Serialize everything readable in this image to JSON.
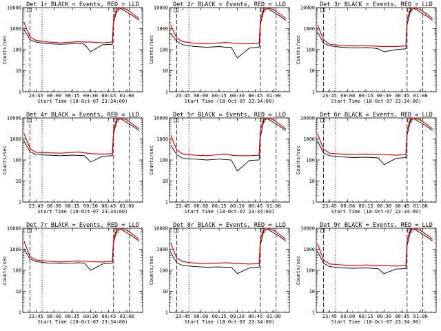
{
  "figure": {
    "colors": {
      "events": "#000000",
      "lld": "#e00000",
      "axes": "#000000",
      "background": "#ffffff"
    },
    "y_tick_labels": [
      "1",
      "10",
      "100",
      "1000",
      "10000"
    ],
    "x_tick_labels": [
      "23:45",
      "00:00",
      "00:15",
      "00:30",
      "00:45",
      "01:00"
    ],
    "y_label": "Counts/sec",
    "x_label": "Start Time (18-Oct-07 23:34:00)"
  },
  "chart_data": [
    {
      "type": "line",
      "title": "Det 1r BLACK = Events, RED = LLD",
      "ylabel": "Counts/sec",
      "xlabel": "Start Time (18-Oct-07 23:34:00)",
      "yscale": "log",
      "ylim": [
        1,
        10000
      ],
      "xlim": [
        "23:34",
        "01:13"
      ],
      "x": [
        "23:35",
        "23:40",
        "23:45",
        "23:55",
        "00:05",
        "00:15",
        "00:20",
        "00:25",
        "00:30",
        "00:40",
        "00:48",
        "00:49",
        "00:52",
        "00:55",
        "01:00",
        "01:05",
        "01:10"
      ],
      "series": [
        {
          "name": "Events",
          "color": "#000000",
          "values": [
            900,
            300,
            230,
            190,
            180,
            190,
            200,
            180,
            80,
            170,
            180,
            2000,
            8000,
            9000,
            6000,
            4000,
            2500
          ]
        },
        {
          "name": "LLD",
          "color": "#e00000",
          "values": [
            2000,
            400,
            280,
            230,
            210,
            230,
            240,
            230,
            230,
            210,
            230,
            3000,
            10000,
            10000,
            8000,
            5000,
            3000
          ]
        }
      ],
      "markers": {
        "dashed": [
          "23:40",
          "00:49",
          "01:02"
        ],
        "dotted": [
          "23:50"
        ]
      }
    },
    {
      "type": "line",
      "title": "Det 2r BLACK = Events, RED = LLD",
      "ylabel": "Counts/sec",
      "xlabel": "Start Time (18-Oct-07 23:34:00)",
      "yscale": "log",
      "ylim": [
        1,
        10000
      ],
      "xlim": [
        "23:34",
        "01:13"
      ],
      "x": [
        "23:35",
        "23:40",
        "23:45",
        "23:55",
        "00:05",
        "00:15",
        "00:20",
        "00:25",
        "00:30",
        "00:40",
        "00:48",
        "00:49",
        "00:52",
        "00:55",
        "01:00",
        "01:05",
        "01:10"
      ],
      "series": [
        {
          "name": "Events",
          "color": "#000000",
          "values": [
            600,
            250,
            170,
            140,
            130,
            140,
            130,
            130,
            40,
            120,
            130,
            1500,
            8000,
            9000,
            6000,
            4000,
            2500
          ]
        },
        {
          "name": "LLD",
          "color": "#e00000",
          "values": [
            1500,
            350,
            240,
            200,
            190,
            210,
            220,
            210,
            200,
            190,
            200,
            2500,
            10000,
            10000,
            8000,
            5000,
            3000
          ]
        }
      ],
      "markers": {
        "dashed": [
          "23:40",
          "00:49",
          "01:02"
        ],
        "dotted": [
          "23:50"
        ]
      }
    },
    {
      "type": "line",
      "title": "Det 3r BLACK = Events, RED = LLD",
      "ylabel": "Counts/sec",
      "xlabel": "Start Time (18-Oct-07 23:34:00)",
      "yscale": "log",
      "ylim": [
        1,
        10000
      ],
      "xlim": [
        "23:34",
        "01:13"
      ],
      "x": [
        "23:35",
        "23:40",
        "23:45",
        "23:55",
        "00:05",
        "00:15",
        "00:20",
        "00:25",
        "00:30",
        "00:40",
        "00:48",
        "00:49",
        "00:52",
        "00:55",
        "01:00",
        "01:05",
        "01:10"
      ],
      "series": [
        {
          "name": "Events",
          "color": "#000000",
          "values": [
            700,
            200,
            150,
            130,
            120,
            125,
            120,
            110,
            80,
            100,
            110,
            1500,
            8000,
            9000,
            6000,
            4000,
            2500
          ]
        },
        {
          "name": "LLD",
          "color": "#e00000",
          "values": [
            1500,
            300,
            180,
            160,
            150,
            160,
            150,
            145,
            140,
            140,
            150,
            2500,
            10000,
            10000,
            8000,
            5000,
            3000
          ]
        }
      ],
      "markers": {
        "dashed": [
          "23:40",
          "00:49",
          "01:02"
        ],
        "dotted": [
          "23:50"
        ]
      }
    },
    {
      "type": "line",
      "title": "Det 4r BLACK = Events, RED = LLD",
      "ylabel": "Counts/sec",
      "xlabel": "Start Time (18-Oct-07 23:34:00)",
      "yscale": "log",
      "ylim": [
        1,
        10000
      ],
      "xlim": [
        "23:34",
        "01:13"
      ],
      "x": [
        "23:35",
        "23:40",
        "23:45",
        "23:55",
        "00:05",
        "00:15",
        "00:20",
        "00:25",
        "00:30",
        "00:40",
        "00:48",
        "00:49",
        "00:52",
        "00:55",
        "01:00",
        "01:05",
        "01:10"
      ],
      "series": [
        {
          "name": "Events",
          "color": "#000000",
          "values": [
            800,
            250,
            180,
            170,
            160,
            170,
            165,
            160,
            80,
            150,
            160,
            1800,
            8000,
            9000,
            6000,
            4000,
            2500
          ]
        },
        {
          "name": "LLD",
          "color": "#e00000",
          "values": [
            1800,
            350,
            230,
            220,
            210,
            230,
            240,
            220,
            200,
            190,
            200,
            2800,
            10000,
            10000,
            8000,
            5000,
            3000
          ]
        }
      ],
      "markers": {
        "dashed": [
          "23:40",
          "00:49",
          "01:02"
        ],
        "dotted": [
          "23:50"
        ]
      }
    },
    {
      "type": "line",
      "title": "Det 5r BLACK = Events, RED = LLD",
      "ylabel": "Counts/sec",
      "xlabel": "Start Time (18-Oct-07 23:34:00)",
      "yscale": "log",
      "ylim": [
        1,
        10000
      ],
      "xlim": [
        "23:34",
        "01:13"
      ],
      "x": [
        "23:35",
        "23:40",
        "23:45",
        "23:55",
        "00:05",
        "00:15",
        "00:20",
        "00:25",
        "00:30",
        "00:40",
        "00:48",
        "00:49",
        "00:52",
        "00:55",
        "01:00",
        "01:05",
        "01:10"
      ],
      "series": [
        {
          "name": "Events",
          "color": "#000000",
          "values": [
            500,
            180,
            120,
            110,
            100,
            110,
            105,
            100,
            30,
            95,
            100,
            1200,
            8000,
            9000,
            6000,
            4000,
            2500
          ]
        },
        {
          "name": "LLD",
          "color": "#e00000",
          "values": [
            1500,
            300,
            190,
            170,
            160,
            180,
            190,
            170,
            160,
            160,
            170,
            2500,
            10000,
            10000,
            8000,
            5000,
            3000
          ]
        }
      ],
      "markers": {
        "dashed": [
          "23:40",
          "00:49",
          "01:02"
        ],
        "dotted": [
          "23:50"
        ]
      }
    },
    {
      "type": "line",
      "title": "Det 6r BLACK = Events, RED = LLD",
      "ylabel": "Counts/sec",
      "xlabel": "Start Time (18-Oct-07 23:34:00)",
      "yscale": "log",
      "ylim": [
        1,
        10000
      ],
      "xlim": [
        "23:34",
        "01:13"
      ],
      "x": [
        "23:35",
        "23:40",
        "23:45",
        "23:55",
        "00:05",
        "00:15",
        "00:20",
        "00:25",
        "00:30",
        "00:40",
        "00:48",
        "00:49",
        "00:52",
        "00:55",
        "01:00",
        "01:05",
        "01:10"
      ],
      "series": [
        {
          "name": "Events",
          "color": "#000000",
          "values": [
            800,
            220,
            160,
            140,
            130,
            135,
            130,
            125,
            60,
            120,
            130,
            1500,
            8000,
            9000,
            6000,
            4000,
            2500
          ]
        },
        {
          "name": "LLD",
          "color": "#e00000",
          "values": [
            1800,
            330,
            210,
            190,
            180,
            190,
            185,
            180,
            180,
            170,
            180,
            2500,
            10000,
            10000,
            8000,
            5000,
            3000
          ]
        }
      ],
      "markers": {
        "dashed": [
          "23:40",
          "00:49",
          "01:02"
        ],
        "dotted": [
          "23:50"
        ]
      }
    },
    {
      "type": "line",
      "title": "Det 7r BLACK = Events, RED = LLD",
      "ylabel": "Counts/sec",
      "xlabel": "Start Time (18-Oct-07 23:34:00)",
      "yscale": "log",
      "ylim": [
        1,
        10000
      ],
      "xlim": [
        "23:34",
        "01:13"
      ],
      "x": [
        "23:35",
        "23:40",
        "23:45",
        "23:55",
        "00:05",
        "00:15",
        "00:20",
        "00:25",
        "00:30",
        "00:40",
        "00:48",
        "00:49",
        "00:52",
        "00:55",
        "01:00",
        "01:05",
        "01:10"
      ],
      "series": [
        {
          "name": "Events",
          "color": "#000000",
          "values": [
            1000,
            350,
            260,
            220,
            210,
            220,
            230,
            220,
            100,
            200,
            220,
            2200,
            8000,
            9000,
            6000,
            4000,
            2500
          ]
        },
        {
          "name": "LLD",
          "color": "#e00000",
          "values": [
            2500,
            450,
            310,
            270,
            250,
            270,
            280,
            270,
            260,
            250,
            270,
            3200,
            10000,
            10000,
            8000,
            5000,
            3000
          ]
        }
      ],
      "markers": {
        "dashed": [
          "23:40",
          "00:49",
          "01:02"
        ],
        "dotted": [
          "23:50"
        ]
      }
    },
    {
      "type": "line",
      "title": "Det 8r BLACK = Events, RED = LLD",
      "ylabel": "Counts/sec",
      "xlabel": "Start Time (18-Oct-07 23:34:00)",
      "yscale": "log",
      "ylim": [
        1,
        10000
      ],
      "xlim": [
        "23:34",
        "01:13"
      ],
      "x": [
        "23:35",
        "23:40",
        "23:45",
        "23:55",
        "00:05",
        "00:15",
        "00:20",
        "00:25",
        "00:30",
        "00:40",
        "00:48",
        "00:49",
        "00:52",
        "00:55",
        "01:00",
        "01:05",
        "01:10"
      ],
      "series": [
        {
          "name": "Events",
          "color": "#000000",
          "values": [
            700,
            230,
            170,
            150,
            140,
            145,
            140,
            140,
            70,
            130,
            140,
            1600,
            8000,
            9000,
            6000,
            4000,
            2500
          ]
        },
        {
          "name": "LLD",
          "color": "#e00000",
          "values": [
            2000,
            380,
            260,
            220,
            210,
            220,
            230,
            220,
            210,
            200,
            210,
            2800,
            10000,
            10000,
            8000,
            5000,
            3000
          ]
        }
      ],
      "markers": {
        "dashed": [
          "23:40",
          "00:49",
          "01:02"
        ],
        "dotted": [
          "23:50"
        ]
      }
    },
    {
      "type": "line",
      "title": "Det 9r BLACK = Events, RED = LLD",
      "ylabel": "Counts/sec",
      "xlabel": "Start Time (18-Oct-07 23:34:00)",
      "yscale": "log",
      "ylim": [
        1,
        10000
      ],
      "xlim": [
        "23:34",
        "01:13"
      ],
      "x": [
        "23:35",
        "23:40",
        "23:45",
        "23:55",
        "00:05",
        "00:15",
        "00:20",
        "00:25",
        "00:30",
        "00:40",
        "00:48",
        "00:49",
        "00:52",
        "00:55",
        "01:00",
        "01:05",
        "01:10"
      ],
      "series": [
        {
          "name": "Events",
          "color": "#000000",
          "values": [
            800,
            220,
            150,
            130,
            125,
            130,
            125,
            120,
            70,
            115,
            120,
            1500,
            8000,
            9000,
            6000,
            4000,
            2500
          ]
        },
        {
          "name": "LLD",
          "color": "#e00000",
          "values": [
            1800,
            320,
            200,
            180,
            170,
            180,
            175,
            170,
            170,
            160,
            170,
            2500,
            10000,
            10000,
            8000,
            5000,
            3000
          ]
        }
      ],
      "markers": {
        "dashed": [
          "23:40",
          "00:49",
          "01:02"
        ],
        "dotted": [
          "23:50"
        ]
      }
    }
  ]
}
